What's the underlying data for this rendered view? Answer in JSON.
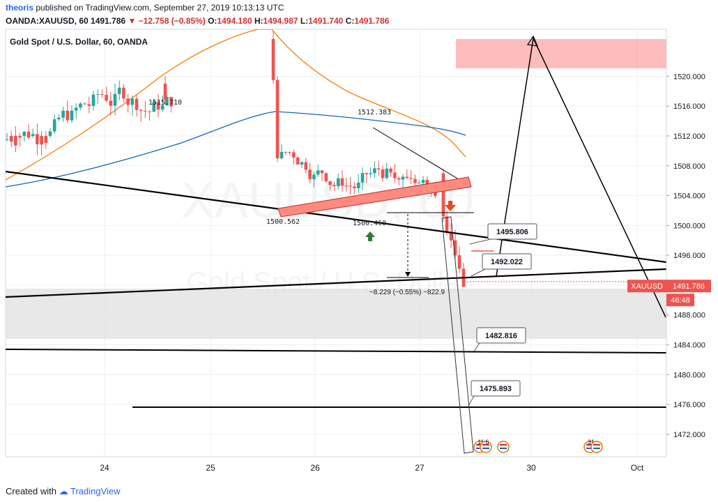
{
  "header": {
    "author": "theoris",
    "published": "published on TradingView.com, September 27, 2019 10:13:13 UTC"
  },
  "quote": {
    "symbol": "OANDA:XAUUSD, 60",
    "last": "1491.786",
    "change": "−12.758 (−0.85%)",
    "o_label": "O:",
    "o": "1494.180",
    "h_label": "H:",
    "h": "1494.987",
    "l_label": "L:",
    "l": "1491.740",
    "c_label": "C:",
    "c": "1491.786"
  },
  "colors": {
    "up": "#26a69a",
    "down": "#ef5350",
    "ema_fast": "#f57c00",
    "ema_slow": "#1565c0",
    "grid": "#eceff1",
    "zone": "#ff6b6b",
    "support": "#e0e0e0"
  },
  "chart_data": {
    "type": "candlestick",
    "legend": "Gold Spot / U.S. Dollar, 60, OANDA",
    "watermark_symbol": "XAUUSD, 60",
    "watermark_name": "Gold Spot / U.S. Dollar",
    "y_ticks": [
      "1472.000",
      "1476.000",
      "1480.000",
      "1484.000",
      "1488.000",
      "1492.000",
      "1496.000",
      "1500.000",
      "1504.000",
      "1508.000",
      "1512.000",
      "1516.000",
      "1520.000"
    ],
    "y_tick_values": [
      1472,
      1476,
      1480,
      1484,
      1488,
      1492,
      1496,
      1500,
      1504,
      1508,
      1512,
      1516,
      1520
    ],
    "ylim": [
      1469.0,
      1526.3
    ],
    "x_ticks": [
      "24",
      "25",
      "26",
      "27",
      "30",
      "Oct"
    ],
    "price_label": "XAUUSD",
    "price_value": "1491.786",
    "price": 1491.786,
    "countdown": "46:48",
    "annotations": {
      "high_left": "1515.710",
      "high_mid": "1512.383",
      "low_1": "1500.562",
      "low_2": "1500.460",
      "measure": "−8.229 (−0.55%) −822.9",
      "callouts": [
        "1495.806",
        "1492.022",
        "1482.816",
        "1475.893"
      ],
      "event_1": "11",
      "event_2": "6",
      "event_3": "31"
    }
  }
}
